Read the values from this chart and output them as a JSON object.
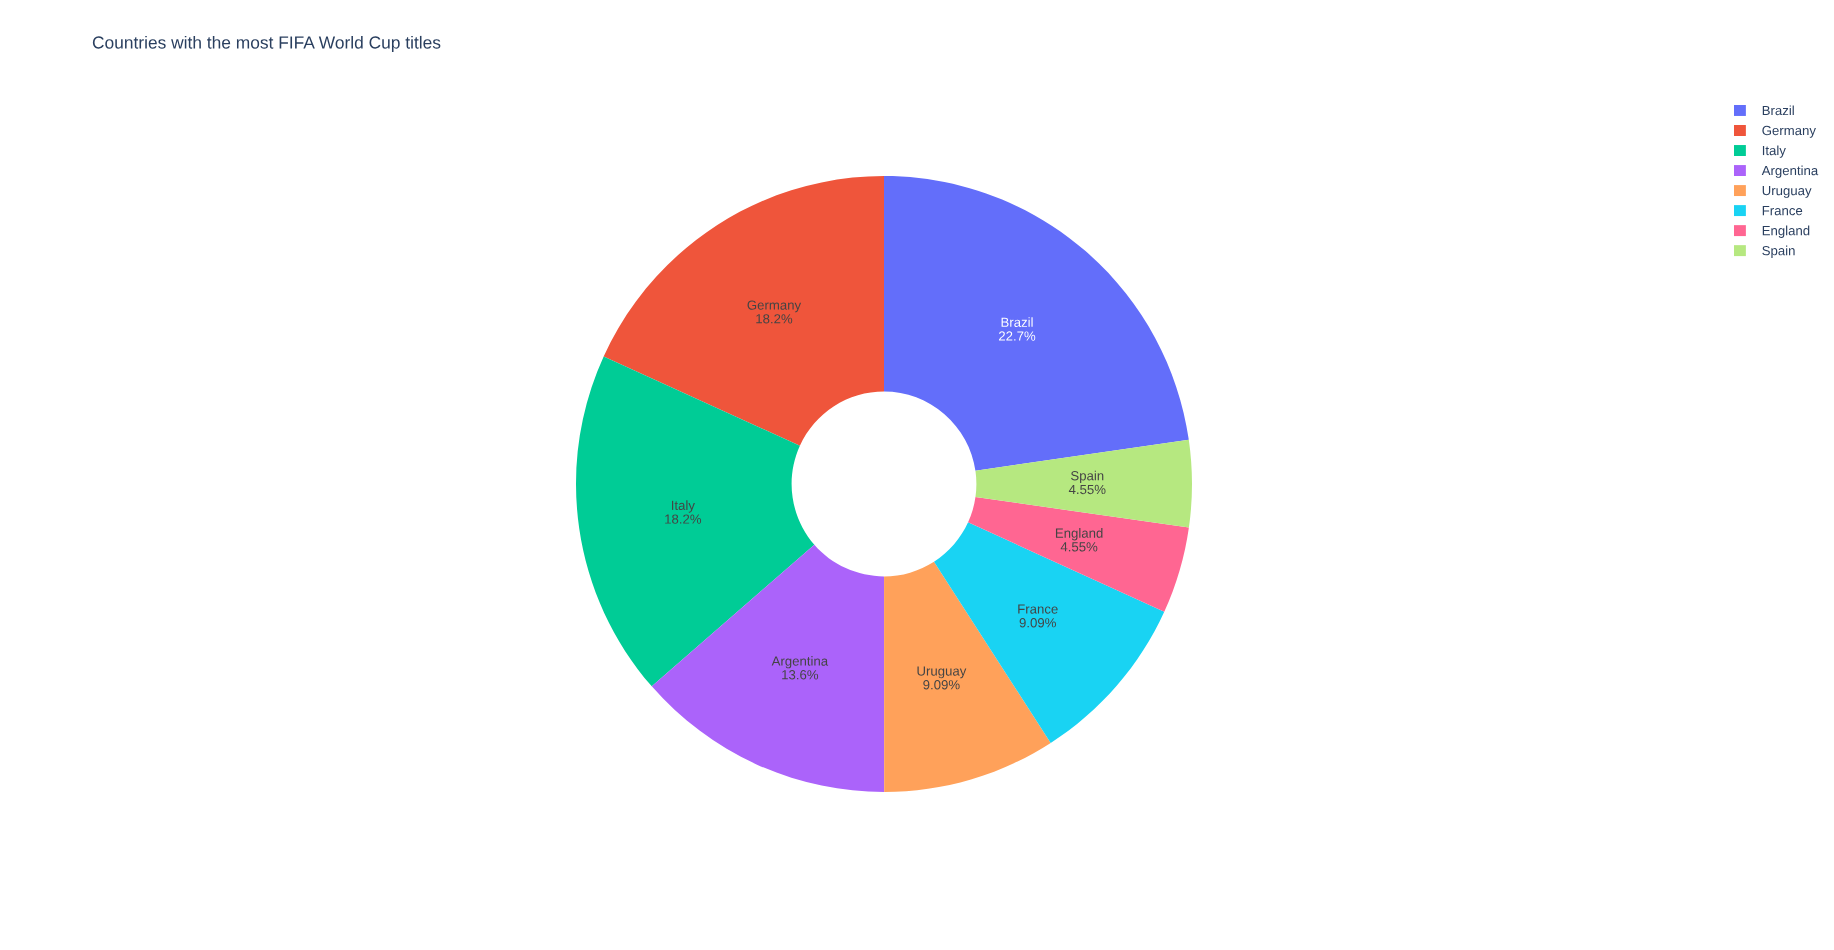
{
  "chart_data": {
    "type": "donut",
    "title": "Countries with the most FIFA World Cup titles",
    "categories": [
      "Brazil",
      "Germany",
      "Italy",
      "Argentina",
      "Uruguay",
      "France",
      "England",
      "Spain"
    ],
    "values": [
      22.7,
      18.2,
      18.2,
      13.6,
      9.09,
      9.09,
      4.55,
      4.55
    ],
    "value_labels": [
      "22.7%",
      "18.2%",
      "18.2%",
      "13.6%",
      "9.09%",
      "9.09%",
      "4.55%",
      "4.55%"
    ],
    "colors": [
      "#636efa",
      "#ef553b",
      "#00cc96",
      "#ab63fa",
      "#ffa15a",
      "#19d3f3",
      "#ff6692",
      "#b6e880"
    ],
    "legend": "top right"
  }
}
